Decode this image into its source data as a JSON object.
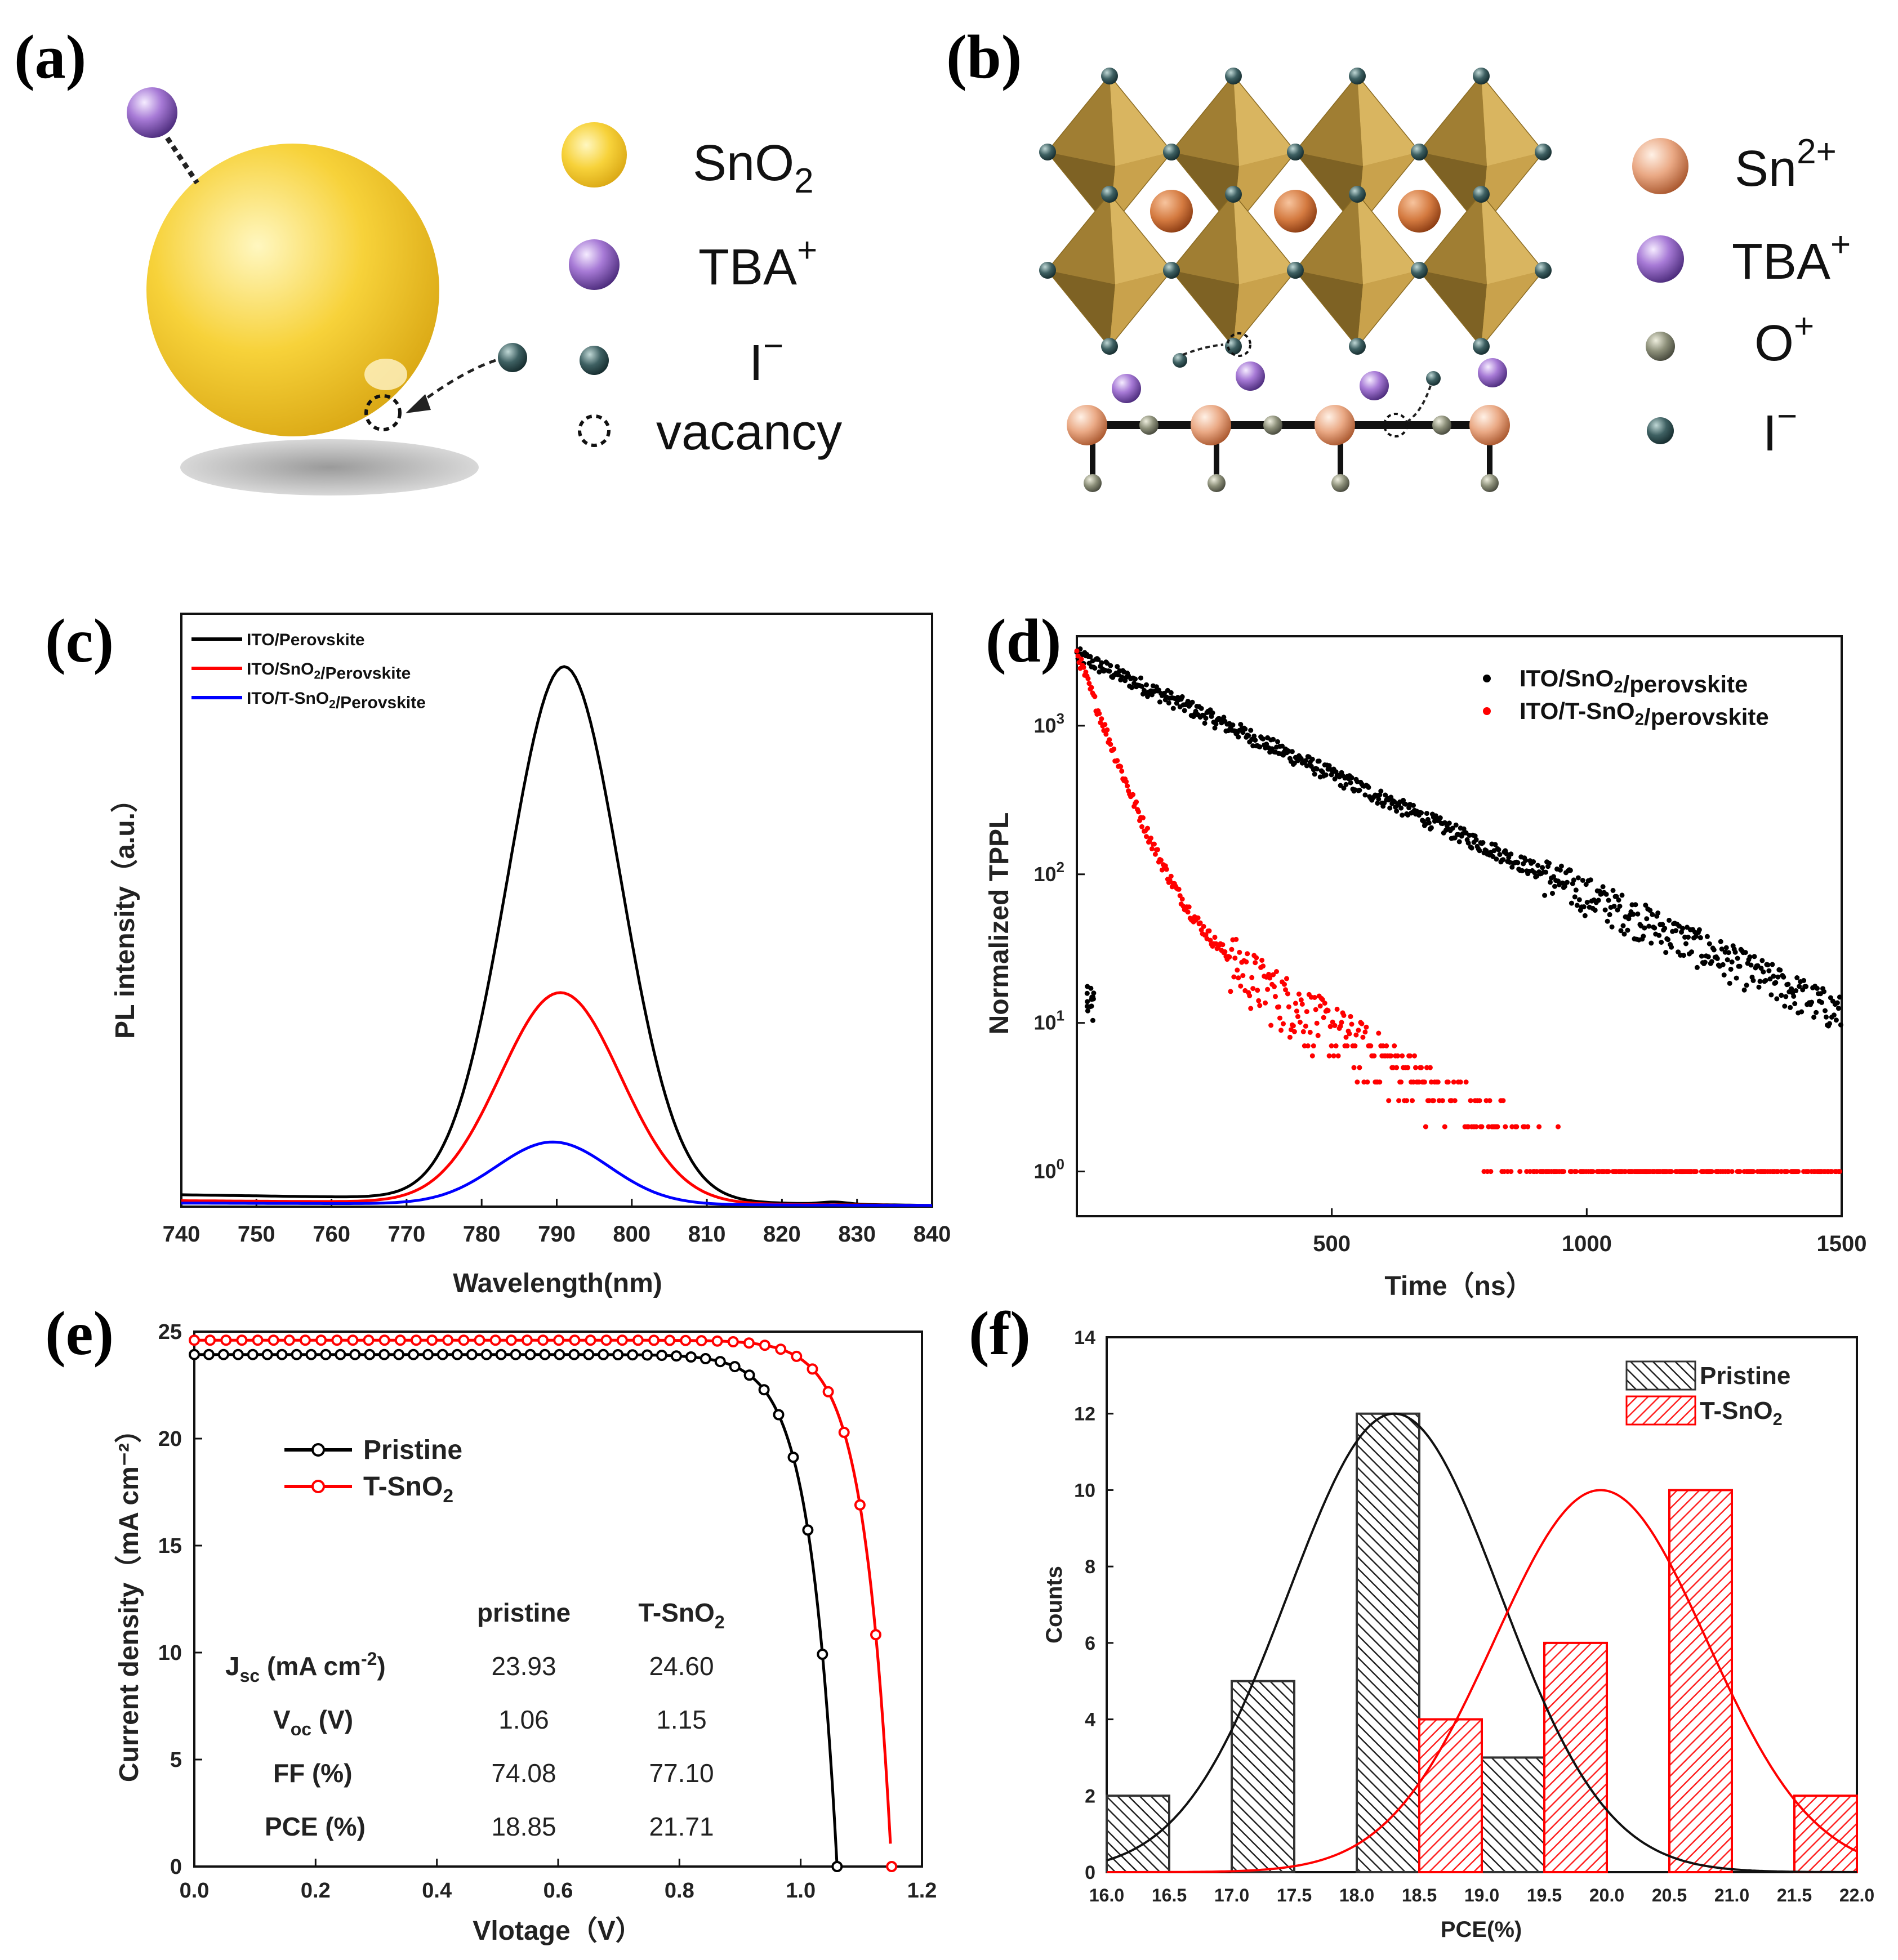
{
  "panels": {
    "a": {
      "label": "(a)",
      "legend": [
        {
          "name": "SnO2",
          "main": "SnO",
          "sub": "2",
          "color": "#f2c230"
        },
        {
          "name": "TBA+",
          "main": "TBA",
          "sup": "+",
          "color": "#8e5cc0"
        },
        {
          "name": "I-",
          "main": "I",
          "sup": "−",
          "color": "#3d5a5c"
        },
        {
          "name": "vacancy",
          "main": "vacancy"
        }
      ]
    },
    "b": {
      "label": "(b)",
      "legend": [
        {
          "name": "Sn2+",
          "main": "Sn",
          "sup": "2+",
          "color": "#e8a07a"
        },
        {
          "name": "TBA+",
          "main": "TBA",
          "sup": "+",
          "color": "#8e5cc0"
        },
        {
          "name": "O+",
          "main": "O",
          "sup": "+",
          "color": "#8a8d78"
        },
        {
          "name": "I-",
          "main": "I",
          "sup": "−",
          "color": "#3d5a5c"
        }
      ]
    },
    "c": {
      "label": "(c)"
    },
    "d": {
      "label": "(d)"
    },
    "e": {
      "label": "(e)",
      "table": {
        "headers": [
          "pristine",
          "T-SnO2"
        ],
        "rows": [
          {
            "param": "Jsc (mA cm-2)",
            "pristine": "23.93",
            "tsno2": "24.60"
          },
          {
            "param": "Voc (V)",
            "pristine": "1.06",
            "tsno2": "1.15"
          },
          {
            "param": "FF (%)",
            "pristine": "74.08",
            "tsno2": "77.10"
          },
          {
            "param": "PCE (%)",
            "pristine": "18.85",
            "tsno2": "21.71"
          }
        ]
      }
    },
    "f": {
      "label": "(f)"
    }
  },
  "chart_data": [
    {
      "id": "c",
      "type": "line",
      "xlabel": "Wavelength(nm)",
      "ylabel": "PL intensity（a.u.）",
      "xlim": [
        740,
        840
      ],
      "ylim": [
        0,
        100
      ],
      "xticks": [
        740,
        750,
        760,
        770,
        780,
        790,
        800,
        810,
        820,
        830,
        840
      ],
      "legend_position": "top-left",
      "series": [
        {
          "name": "ITO/Perovskite",
          "color": "#000000",
          "peak": 791,
          "height": 90,
          "sigma": 7.5,
          "baseline": [
            2.0,
            0.2
          ]
        },
        {
          "name": "ITO/SnO2/Perovskite",
          "color": "#ff0000",
          "peak": 790.5,
          "height": 35.5,
          "sigma": 8.0,
          "baseline": [
            1.0,
            0.2
          ]
        },
        {
          "name": "ITO/T-SnO2/Perovskite",
          "color": "#0000ff",
          "peak": 789.5,
          "height": 10.5,
          "sigma": 7.5,
          "baseline": [
            0.6,
            0.2
          ]
        }
      ]
    },
    {
      "id": "d",
      "type": "scatter",
      "xlabel": "Time（ns）",
      "ylabel": "Normalized TPPL",
      "yscale": "log",
      "xlim": [
        0,
        1500
      ],
      "ylim": [
        0.5,
        4000
      ],
      "xticks": [
        500,
        1000,
        1500
      ],
      "yticks": [
        1,
        10,
        100,
        1000
      ],
      "legend_position": "top-right",
      "series": [
        {
          "name": "ITO/SnO2/perovskite",
          "color": "#000000",
          "start": 3000,
          "tau": 270
        },
        {
          "name": "ITO/T-SnO2/perovskite",
          "color": "#ff0000",
          "start": 3000,
          "fast_tau": 45,
          "slow_amp": 100,
          "slow_tau": 210
        }
      ]
    },
    {
      "id": "e",
      "type": "line",
      "xlabel": "Vlotage（V）",
      "ylabel": "Current density（mA cm⁻²）",
      "xlim": [
        0,
        1.2
      ],
      "ylim": [
        0,
        25
      ],
      "xticks": [
        0.0,
        0.2,
        0.4,
        0.6,
        0.8,
        1.0,
        1.2
      ],
      "yticks": [
        0,
        5,
        10,
        15,
        20,
        25
      ],
      "legend_position": "middle-left",
      "series": [
        {
          "name": "Pristine",
          "color": "#000000",
          "jsc": 23.93,
          "voc": 1.06
        },
        {
          "name": "T-SnO2",
          "color": "#ff0000",
          "jsc": 24.6,
          "voc": 1.15
        }
      ]
    },
    {
      "id": "f",
      "type": "bar",
      "xlabel": "PCE(%)",
      "ylabel": "Counts",
      "xlim": [
        16.0,
        22.0
      ],
      "ylim": [
        0,
        14
      ],
      "xticks": [
        16.0,
        16.5,
        17.0,
        17.5,
        18.0,
        18.5,
        19.0,
        19.5,
        20.0,
        20.5,
        21.0,
        21.5,
        22.0
      ],
      "yticks": [
        0,
        2,
        4,
        6,
        8,
        10,
        12,
        14
      ],
      "legend_position": "top-right",
      "series": [
        {
          "name": "Pristine",
          "color": "#333333",
          "bins": [
            [
              16.0,
              2
            ],
            [
              17.0,
              5
            ],
            [
              18.0,
              12
            ],
            [
              19.0,
              3
            ]
          ],
          "fit": {
            "mu": 18.3,
            "sigma": 0.85,
            "amp": 12
          }
        },
        {
          "name": "T-SnO2",
          "color": "#ff0000",
          "bins": [
            [
              18.5,
              4
            ],
            [
              19.5,
              6
            ],
            [
              20.5,
              10
            ],
            [
              21.5,
              2
            ]
          ],
          "fit": {
            "mu": 19.95,
            "sigma": 0.85,
            "amp": 10
          }
        }
      ]
    }
  ]
}
